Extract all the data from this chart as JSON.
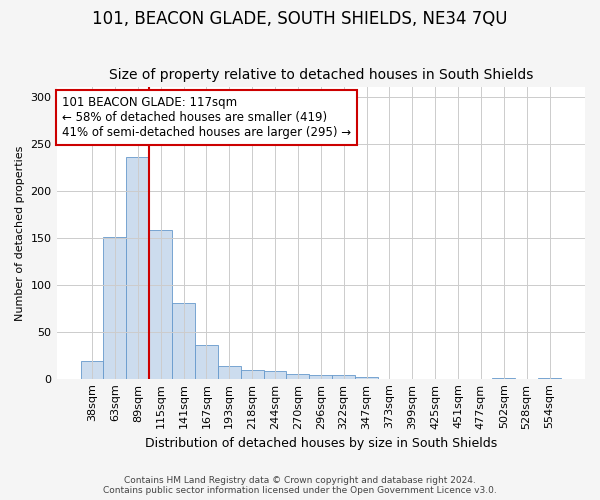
{
  "title": "101, BEACON GLADE, SOUTH SHIELDS, NE34 7QU",
  "subtitle": "Size of property relative to detached houses in South Shields",
  "xlabel": "Distribution of detached houses by size in South Shields",
  "ylabel": "Number of detached properties",
  "bar_color": "#ccdcee",
  "bar_edge_color": "#6699cc",
  "categories": [
    "38sqm",
    "63sqm",
    "89sqm",
    "115sqm",
    "141sqm",
    "167sqm",
    "193sqm",
    "218sqm",
    "244sqm",
    "270sqm",
    "296sqm",
    "322sqm",
    "347sqm",
    "373sqm",
    "399sqm",
    "425sqm",
    "451sqm",
    "477sqm",
    "502sqm",
    "528sqm",
    "554sqm"
  ],
  "values": [
    19,
    151,
    236,
    158,
    81,
    36,
    14,
    9,
    8,
    5,
    4,
    4,
    2,
    0,
    0,
    0,
    0,
    0,
    1,
    0,
    1
  ],
  "vline_color": "#cc0000",
  "vline_position": 2.5,
  "annotation_text": "101 BEACON GLADE: 117sqm\n← 58% of detached houses are smaller (419)\n41% of semi-detached houses are larger (295) →",
  "footer_text": "Contains HM Land Registry data © Crown copyright and database right 2024.\nContains public sector information licensed under the Open Government Licence v3.0.",
  "ylim": [
    0,
    310
  ],
  "yticks": [
    0,
    50,
    100,
    150,
    200,
    250,
    300
  ],
  "bg_color": "#f5f5f5",
  "plot_bg_color": "#ffffff",
  "grid_color": "#cccccc",
  "title_fontsize": 12,
  "subtitle_fontsize": 10,
  "xlabel_fontsize": 9,
  "ylabel_fontsize": 8,
  "tick_fontsize": 8,
  "annot_fontsize": 8.5,
  "footer_fontsize": 6.5
}
